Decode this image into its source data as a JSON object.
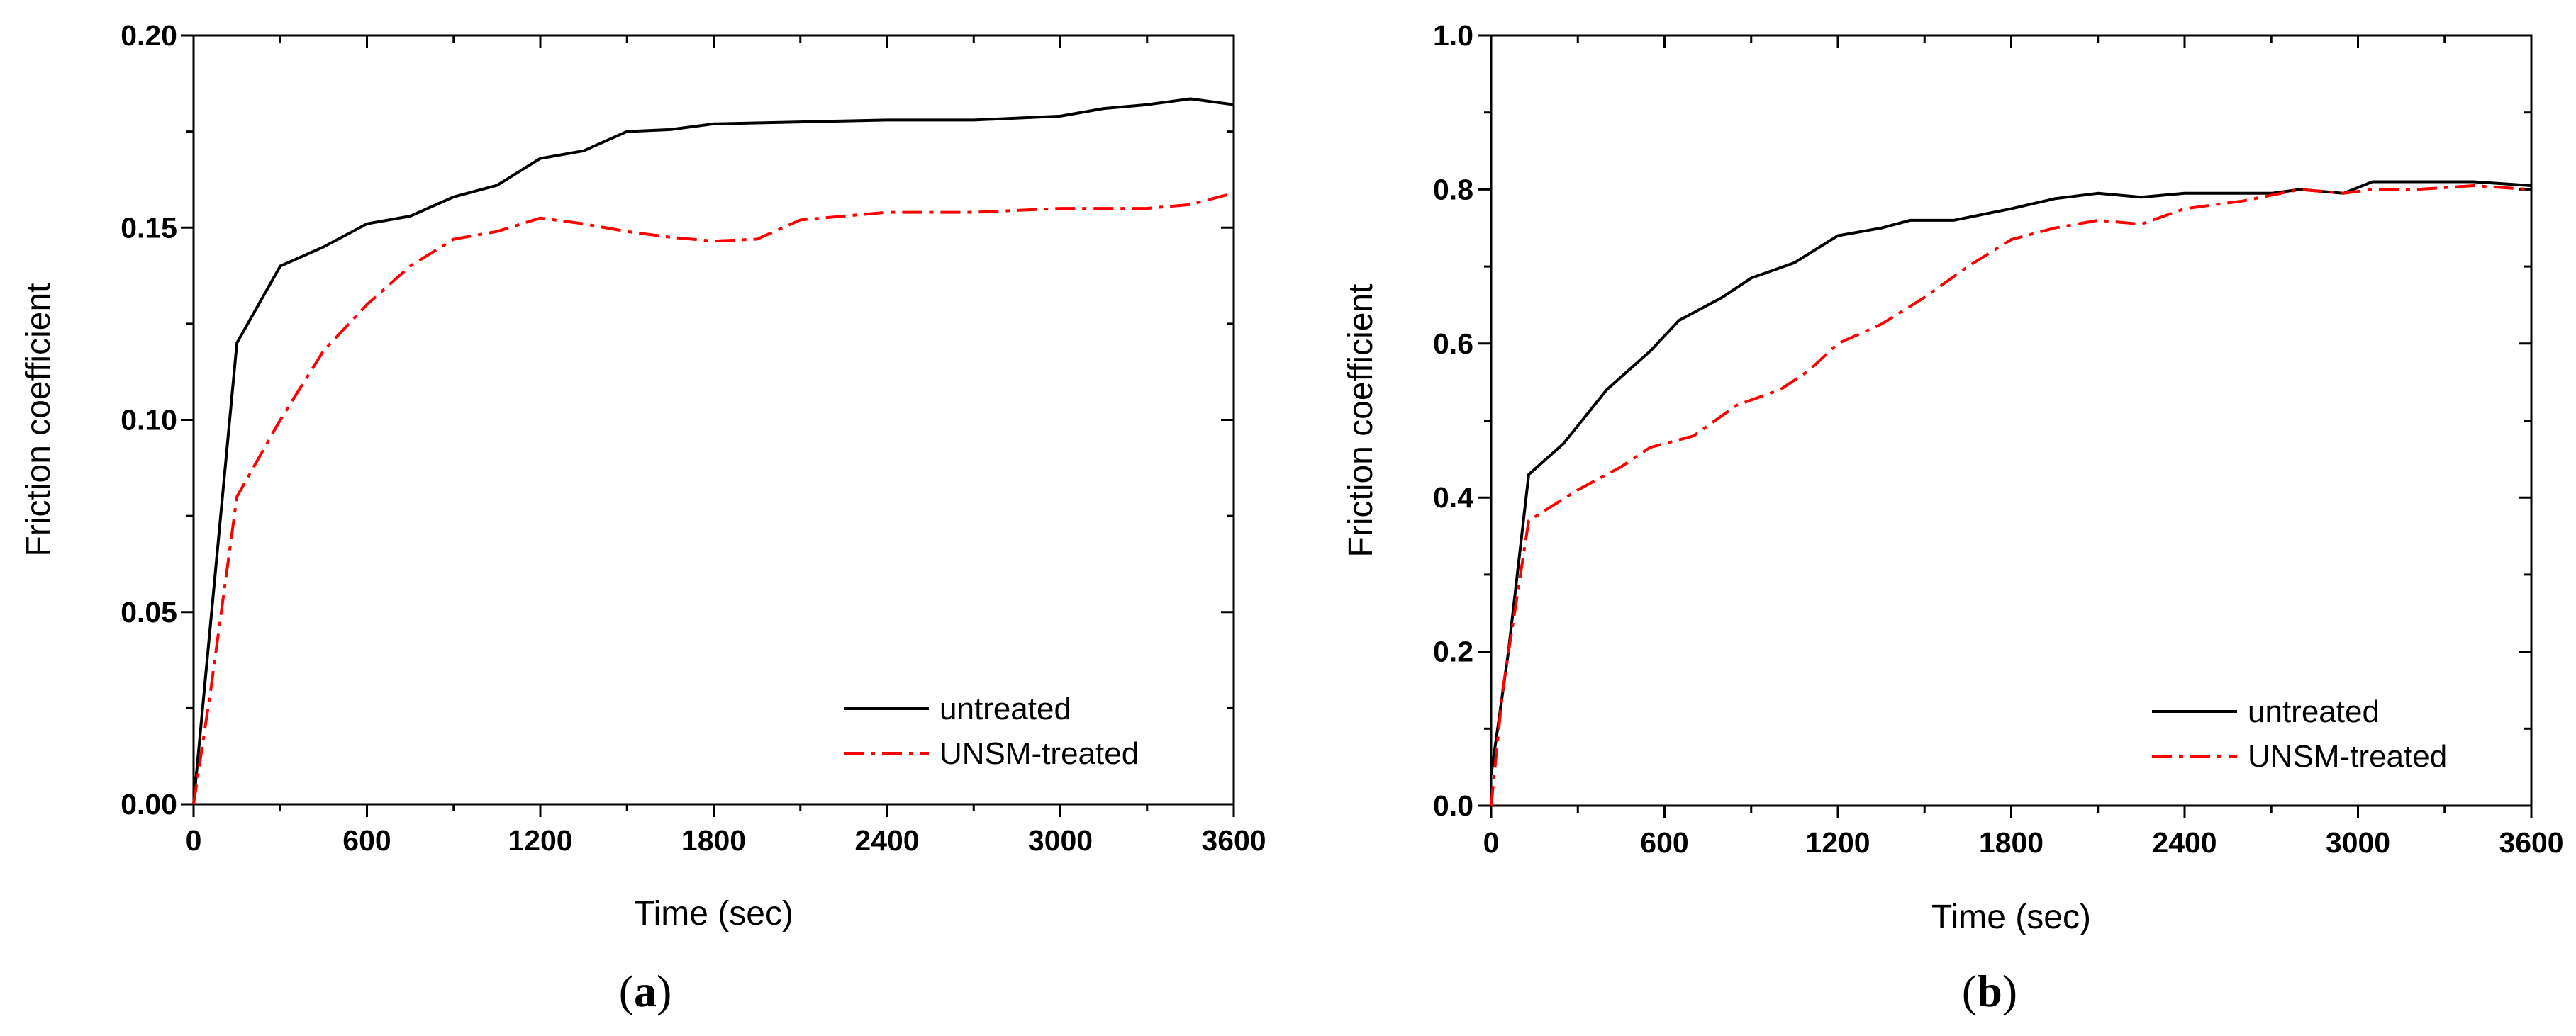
{
  "chart_data": [
    {
      "type": "line",
      "panel_label": "a",
      "caption": {
        "open": "(",
        "letter": "a",
        "close": ")"
      },
      "xlabel": "Time (sec)",
      "ylabel": "Friction coefficient",
      "xlim": [
        0,
        3600
      ],
      "ylim": [
        0,
        0.2
      ],
      "x_ticks": [
        0,
        600,
        1200,
        1800,
        2400,
        3000,
        3600
      ],
      "y_ticks": [
        0.0,
        0.05,
        0.1,
        0.15,
        0.2
      ],
      "y_tick_labels": [
        "0.00",
        "0.05",
        "0.10",
        "0.15",
        "0.20"
      ],
      "x_tick_labels": [
        "0",
        "600",
        "1200",
        "1800",
        "2400",
        "3000",
        "3600"
      ],
      "grid": false,
      "legend_position": "bottom-right",
      "series": [
        {
          "name": "untreated",
          "color": "#000000",
          "style": "solid",
          "points": [
            [
              0,
              0
            ],
            [
              150,
              0.12
            ],
            [
              300,
              0.14
            ],
            [
              450,
              0.145
            ],
            [
              600,
              0.151
            ],
            [
              750,
              0.153
            ],
            [
              900,
              0.158
            ],
            [
              1050,
              0.161
            ],
            [
              1200,
              0.168
            ],
            [
              1350,
              0.17
            ],
            [
              1500,
              0.175
            ],
            [
              1650,
              0.1755
            ],
            [
              1800,
              0.177
            ],
            [
              2100,
              0.1775
            ],
            [
              2400,
              0.178
            ],
            [
              2700,
              0.178
            ],
            [
              3000,
              0.179
            ],
            [
              3150,
              0.181
            ],
            [
              3300,
              0.182
            ],
            [
              3450,
              0.1835
            ],
            [
              3600,
              0.182
            ]
          ]
        },
        {
          "name": "UNSM-treated",
          "color": "#ff0000",
          "style": "dash-dot",
          "points": [
            [
              0,
              0
            ],
            [
              60,
              0.03
            ],
            [
              150,
              0.08
            ],
            [
              300,
              0.1
            ],
            [
              450,
              0.118
            ],
            [
              600,
              0.13
            ],
            [
              750,
              0.14
            ],
            [
              900,
              0.147
            ],
            [
              1050,
              0.149
            ],
            [
              1200,
              0.1525
            ],
            [
              1350,
              0.151
            ],
            [
              1500,
              0.149
            ],
            [
              1650,
              0.1475
            ],
            [
              1800,
              0.1465
            ],
            [
              1950,
              0.147
            ],
            [
              2100,
              0.152
            ],
            [
              2400,
              0.154
            ],
            [
              2700,
              0.154
            ],
            [
              3000,
              0.155
            ],
            [
              3300,
              0.155
            ],
            [
              3450,
              0.156
            ],
            [
              3600,
              0.159
            ]
          ]
        }
      ]
    },
    {
      "type": "line",
      "panel_label": "b",
      "caption": {
        "open": "(",
        "letter": "b",
        "close": ")"
      },
      "xlabel": "Time (sec)",
      "ylabel": "Friction coefficient",
      "xlim": [
        0,
        3600
      ],
      "ylim": [
        0,
        1.0
      ],
      "x_ticks": [
        0,
        600,
        1200,
        1800,
        2400,
        3000,
        3600
      ],
      "y_ticks": [
        0.0,
        0.2,
        0.4,
        0.6,
        0.8,
        1.0
      ],
      "y_tick_labels": [
        "0.0",
        "0.2",
        "0.4",
        "0.6",
        "0.8",
        "1.0"
      ],
      "x_tick_labels": [
        "0",
        "600",
        "1200",
        "1800",
        "2400",
        "3000",
        "3600"
      ],
      "grid": false,
      "legend_position": "bottom-right",
      "series": [
        {
          "name": "untreated",
          "color": "#000000",
          "style": "solid",
          "points": [
            [
              0,
              0.04
            ],
            [
              60,
              0.2
            ],
            [
              130,
              0.43
            ],
            [
              250,
              0.47
            ],
            [
              400,
              0.54
            ],
            [
              550,
              0.59
            ],
            [
              650,
              0.63
            ],
            [
              800,
              0.66
            ],
            [
              900,
              0.685
            ],
            [
              1050,
              0.705
            ],
            [
              1200,
              0.74
            ],
            [
              1350,
              0.75
            ],
            [
              1450,
              0.76
            ],
            [
              1600,
              0.76
            ],
            [
              1800,
              0.775
            ],
            [
              1950,
              0.788
            ],
            [
              2100,
              0.795
            ],
            [
              2250,
              0.79
            ],
            [
              2400,
              0.795
            ],
            [
              2550,
              0.795
            ],
            [
              2700,
              0.795
            ],
            [
              2800,
              0.8
            ],
            [
              2950,
              0.795
            ],
            [
              3050,
              0.81
            ],
            [
              3200,
              0.81
            ],
            [
              3400,
              0.81
            ],
            [
              3600,
              0.805
            ]
          ]
        },
        {
          "name": "UNSM-treated",
          "color": "#ff0000",
          "style": "dash-dot",
          "points": [
            [
              0,
              0.0
            ],
            [
              40,
              0.15
            ],
            [
              130,
              0.37
            ],
            [
              300,
              0.41
            ],
            [
              450,
              0.44
            ],
            [
              550,
              0.465
            ],
            [
              700,
              0.48
            ],
            [
              850,
              0.52
            ],
            [
              1000,
              0.54
            ],
            [
              1100,
              0.565
            ],
            [
              1200,
              0.6
            ],
            [
              1350,
              0.625
            ],
            [
              1500,
              0.66
            ],
            [
              1650,
              0.7
            ],
            [
              1800,
              0.735
            ],
            [
              1950,
              0.75
            ],
            [
              2100,
              0.76
            ],
            [
              2250,
              0.755
            ],
            [
              2400,
              0.775
            ],
            [
              2600,
              0.785
            ],
            [
              2800,
              0.8
            ],
            [
              2950,
              0.795
            ],
            [
              3050,
              0.8
            ],
            [
              3200,
              0.8
            ],
            [
              3400,
              0.805
            ],
            [
              3600,
              0.8
            ]
          ]
        }
      ]
    }
  ]
}
